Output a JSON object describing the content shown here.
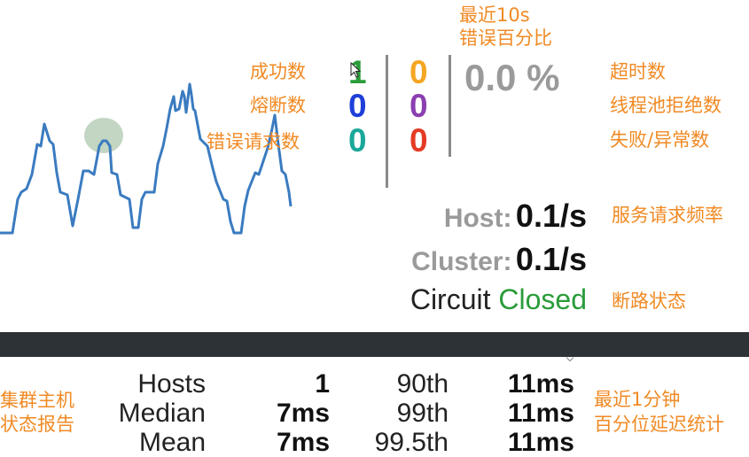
{
  "annotations": {
    "error_pct_line1": "最近10s",
    "error_pct_line2": "错误百分比",
    "success": "成功数",
    "short_circuited": "熔断数",
    "bad_request": "错误请求数",
    "timeout": "超时数",
    "threadpool_rejected": "线程池拒绝数",
    "failure": "失败/异常数",
    "rate": "服务请求频率",
    "circuit": "断路状态",
    "hosts_line1": "集群主机",
    "hosts_line2": "状态报告",
    "latency_line1": "最近1分钟",
    "latency_line2": "百分位延迟统计"
  },
  "counters": {
    "success": "1",
    "timeout": "0",
    "short_circuited": "0",
    "threadpool_rejected": "0",
    "bad_request": "0",
    "failure": "0",
    "colors": {
      "success": "#2a9c3a",
      "timeout": "#f5a623",
      "short_circuited": "#1e3fd9",
      "threadpool_rejected": "#8b3fb0",
      "bad_request": "#1aa89a",
      "failure": "#e53b26"
    }
  },
  "error_percentage": {
    "value": "0.0",
    "unit": "%"
  },
  "rates": {
    "host_label": "Host:",
    "host_value": "0.1/s",
    "cluster_label": "Cluster:",
    "cluster_value": "0.1/s"
  },
  "circuit": {
    "label": "Circuit",
    "status": "Closed",
    "status_color": "#2a9c3a"
  },
  "latency": {
    "rows": [
      {
        "label": "Hosts",
        "value": "1",
        "pct_label": "90th",
        "pct_value": "11ms"
      },
      {
        "label": "Median",
        "value": "7ms",
        "pct_label": "99th",
        "pct_value": "11ms"
      },
      {
        "label": "Mean",
        "value": "7ms",
        "pct_label": "99.5th",
        "pct_value": "11ms"
      }
    ]
  },
  "sparkline": {
    "line_color": "#3a7bc0",
    "circle_color": "#b7cfb9"
  }
}
